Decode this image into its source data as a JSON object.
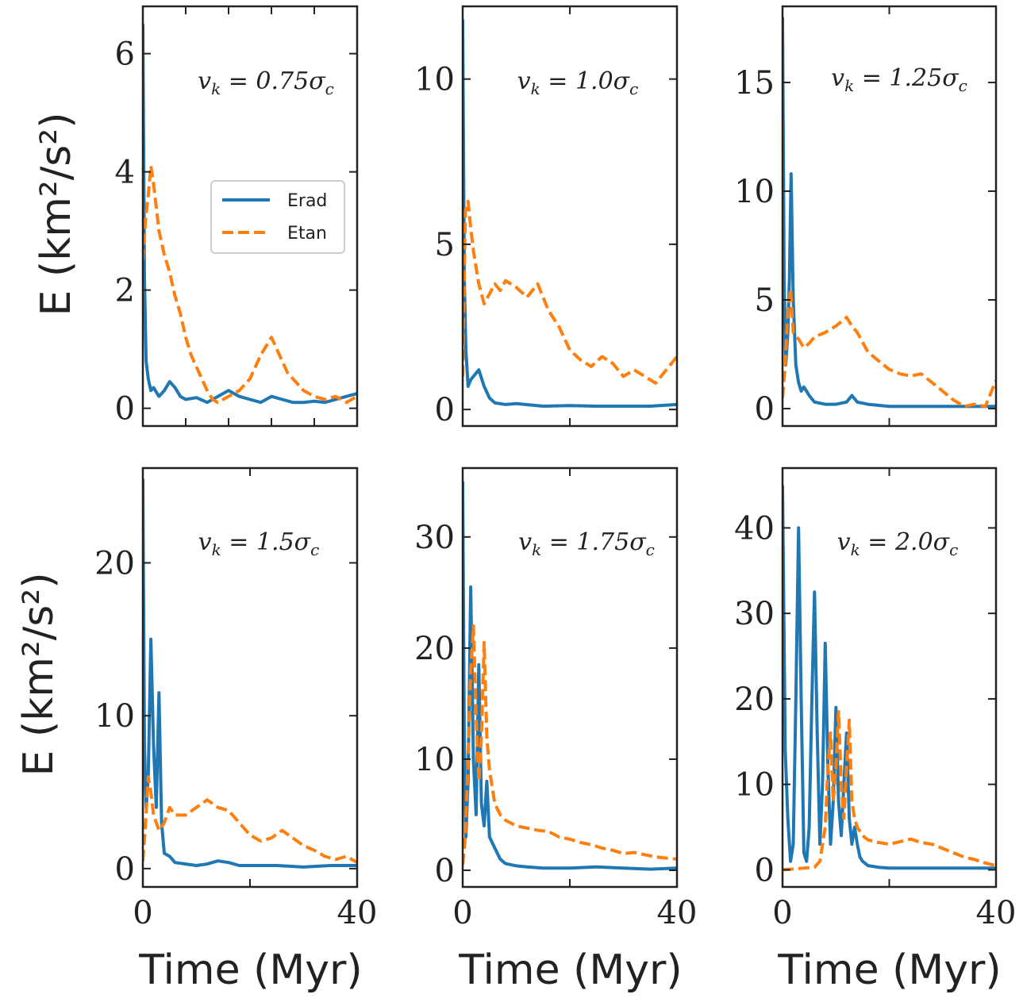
{
  "figure": {
    "ylabel": "E (km²/s²)",
    "xlabel": "Time (Myr)",
    "legend": {
      "placement": "center-right (first panel)",
      "entries": [
        "Erad",
        "Etan"
      ]
    },
    "colors": {
      "Erad": "#1f77b4",
      "Etan": "#ff7f0e",
      "axes": "#222222"
    }
  },
  "chart_data": [
    {
      "type": "line",
      "title": "v_k = 0.75σ_c",
      "xlim": [
        0,
        40
      ],
      "ylim": [
        -0.3,
        6.8
      ],
      "xticks": [
        0,
        8,
        16,
        24,
        32,
        40
      ],
      "yticks": [
        0,
        2,
        4,
        6
      ],
      "show_xticklabels": false,
      "series": [
        {
          "name": "Erad",
          "style": "solid",
          "x": [
            0,
            0.3,
            0.6,
            1,
            1.5,
            2,
            3,
            4,
            5,
            6,
            7,
            8,
            10,
            12,
            14,
            16,
            18,
            20,
            22,
            24,
            26,
            28,
            30,
            32,
            34,
            36,
            38,
            40
          ],
          "y": [
            6.5,
            2.2,
            0.8,
            0.5,
            0.3,
            0.35,
            0.2,
            0.3,
            0.45,
            0.35,
            0.2,
            0.15,
            0.18,
            0.1,
            0.2,
            0.3,
            0.2,
            0.15,
            0.1,
            0.2,
            0.15,
            0.1,
            0.1,
            0.12,
            0.1,
            0.15,
            0.2,
            0.25
          ]
        },
        {
          "name": "Etan",
          "style": "dashed",
          "x": [
            0,
            0.5,
            1,
            1.5,
            2,
            2.5,
            3,
            4,
            5,
            6,
            7,
            8,
            9,
            10,
            11,
            12,
            13,
            14,
            16,
            18,
            19,
            20,
            22,
            24,
            25,
            26,
            27,
            28,
            30,
            32,
            34,
            36,
            38,
            40
          ],
          "y": [
            2.5,
            3.2,
            3.6,
            4.1,
            3.8,
            3.4,
            3.0,
            2.6,
            2.3,
            1.9,
            1.6,
            1.2,
            0.9,
            0.7,
            0.5,
            0.3,
            0.15,
            0.1,
            0.2,
            0.3,
            0.4,
            0.5,
            0.9,
            1.2,
            1.0,
            0.8,
            0.6,
            0.5,
            0.3,
            0.2,
            0.15,
            0.2,
            0.1,
            0.2
          ]
        }
      ]
    },
    {
      "type": "line",
      "title": "v_k = 1.0σ_c",
      "xlim": [
        0,
        40
      ],
      "ylim": [
        -0.5,
        12.2
      ],
      "xticks": [
        0,
        20,
        40
      ],
      "yticks": [
        0,
        5,
        10
      ],
      "show_xticklabels": false,
      "series": [
        {
          "name": "Erad",
          "style": "solid",
          "x": [
            0,
            0.3,
            0.6,
            1,
            1.5,
            2,
            3,
            4,
            5,
            6,
            8,
            10,
            15,
            20,
            25,
            30,
            35,
            40
          ],
          "y": [
            11.8,
            4.0,
            1.8,
            0.7,
            0.9,
            1.0,
            1.2,
            0.7,
            0.35,
            0.2,
            0.15,
            0.18,
            0.1,
            0.12,
            0.1,
            0.1,
            0.1,
            0.15
          ]
        },
        {
          "name": "Etan",
          "style": "dashed",
          "x": [
            0,
            0.5,
            1,
            1.5,
            2,
            3,
            4,
            5,
            6,
            7,
            8,
            10,
            12,
            14,
            16,
            18,
            20,
            22,
            24,
            26,
            28,
            30,
            32,
            34,
            36,
            38,
            40
          ],
          "y": [
            1.0,
            6.0,
            6.3,
            5.5,
            4.8,
            3.8,
            3.2,
            3.5,
            3.8,
            3.6,
            3.9,
            3.7,
            3.4,
            3.8,
            3.0,
            2.5,
            1.8,
            1.5,
            1.3,
            1.6,
            1.4,
            1.0,
            1.2,
            1.0,
            0.8,
            1.2,
            1.6
          ]
        }
      ]
    },
    {
      "type": "line",
      "title": "v_k = 1.25σ_c",
      "xlim": [
        0,
        40
      ],
      "ylim": [
        -0.8,
        18.5
      ],
      "xticks": [
        0,
        20,
        40
      ],
      "yticks": [
        0,
        5,
        10,
        15
      ],
      "show_xticklabels": false,
      "series": [
        {
          "name": "Erad",
          "style": "solid",
          "x": [
            0,
            0.3,
            0.6,
            1,
            1.3,
            1.6,
            2,
            2.5,
            3,
            3.5,
            4,
            5,
            6,
            8,
            10,
            12,
            13,
            14,
            16,
            20,
            25,
            30,
            35,
            40
          ],
          "y": [
            18,
            6.0,
            2.0,
            3.5,
            6.0,
            10.8,
            5.0,
            2.0,
            1.2,
            0.8,
            1.0,
            0.6,
            0.3,
            0.2,
            0.2,
            0.3,
            0.6,
            0.3,
            0.2,
            0.1,
            0.1,
            0.1,
            0.1,
            0.1
          ]
        },
        {
          "name": "Etan",
          "style": "dashed",
          "x": [
            0,
            0.5,
            1,
            1.5,
            2,
            3,
            4,
            5,
            6,
            8,
            10,
            12,
            13,
            14,
            16,
            18,
            20,
            22,
            24,
            26,
            28,
            30,
            32,
            34,
            36,
            38,
            40
          ],
          "y": [
            0.5,
            2.0,
            4.5,
            5.5,
            3.5,
            3.2,
            2.8,
            3.0,
            3.3,
            3.5,
            3.8,
            4.2,
            3.8,
            3.5,
            2.6,
            2.2,
            1.8,
            1.6,
            1.5,
            1.6,
            1.2,
            0.8,
            0.4,
            0.1,
            0.2,
            0.1,
            1.3
          ]
        }
      ]
    },
    {
      "type": "line",
      "title": "v_k = 1.5σ_c",
      "xlim": [
        0,
        40
      ],
      "ylim": [
        -1.2,
        26.2
      ],
      "xticks": [
        0,
        20,
        40
      ],
      "yticks": [
        0,
        10,
        20
      ],
      "show_xticklabels": true,
      "series": [
        {
          "name": "Erad",
          "style": "solid",
          "x": [
            0,
            0.3,
            0.6,
            1,
            1.5,
            2,
            2.5,
            3,
            3.5,
            4,
            5,
            6,
            8,
            10,
            12,
            14,
            16,
            18,
            20,
            25,
            30,
            35,
            40
          ],
          "y": [
            25.5,
            8.0,
            4.0,
            6.0,
            15.0,
            8.0,
            4.0,
            11.5,
            3.0,
            1.0,
            0.8,
            0.4,
            0.3,
            0.2,
            0.3,
            0.5,
            0.4,
            0.2,
            0.2,
            0.2,
            0.1,
            0.2,
            0.2
          ]
        },
        {
          "name": "Etan",
          "style": "dashed",
          "x": [
            0,
            0.5,
            1,
            1.5,
            2,
            3,
            4,
            5,
            6,
            8,
            10,
            12,
            14,
            16,
            18,
            20,
            22,
            24,
            26,
            28,
            30,
            32,
            34,
            36,
            38,
            40
          ],
          "y": [
            0.5,
            3.0,
            6.0,
            5.0,
            3.5,
            2.5,
            3.0,
            4.0,
            3.5,
            3.5,
            4.0,
            4.5,
            4.0,
            3.8,
            3.0,
            2.2,
            1.8,
            2.0,
            2.5,
            2.0,
            1.5,
            1.2,
            0.8,
            0.6,
            0.8,
            0.4
          ]
        }
      ]
    },
    {
      "type": "line",
      "title": "v_k = 1.75σ_c",
      "xlim": [
        0,
        40
      ],
      "ylim": [
        -1.5,
        36.2
      ],
      "xticks": [
        0,
        20,
        40
      ],
      "yticks": [
        0,
        10,
        20,
        30
      ],
      "show_xticklabels": true,
      "series": [
        {
          "name": "Erad",
          "style": "solid",
          "x": [
            0,
            0.3,
            0.6,
            1,
            1.5,
            2,
            2.5,
            3,
            3.5,
            4,
            4.5,
            5,
            6,
            7,
            8,
            10,
            12,
            15,
            20,
            25,
            30,
            35,
            40
          ],
          "y": [
            35,
            12.0,
            3.0,
            8.0,
            25.5,
            10.0,
            5.0,
            18.5,
            6.0,
            4.0,
            8.0,
            3.0,
            2.0,
            1.0,
            0.6,
            0.4,
            0.3,
            0.2,
            0.2,
            0.3,
            0.2,
            0.1,
            0.2
          ]
        },
        {
          "name": "Etan",
          "style": "dashed",
          "x": [
            0,
            0.5,
            1,
            1.5,
            2,
            2.5,
            3,
            3.5,
            4,
            4.5,
            5,
            6,
            7,
            8,
            10,
            12,
            14,
            16,
            18,
            20,
            22,
            24,
            26,
            28,
            30,
            32,
            34,
            36,
            38,
            40
          ],
          "y": [
            0.5,
            3.0,
            10.0,
            18.0,
            22.0,
            14.0,
            8.0,
            12.0,
            20.5,
            12.0,
            9.0,
            6.0,
            5.0,
            4.5,
            4.0,
            3.8,
            3.6,
            3.5,
            3.0,
            2.8,
            2.5,
            2.3,
            2.0,
            1.8,
            1.5,
            1.6,
            1.4,
            1.2,
            1.1,
            1.0
          ]
        }
      ]
    },
    {
      "type": "line",
      "title": "v_k = 2.0σ_c",
      "xlim": [
        0,
        40
      ],
      "ylim": [
        -2.0,
        47.0
      ],
      "xticks": [
        0,
        20,
        40
      ],
      "yticks": [
        0,
        10,
        20,
        30,
        40
      ],
      "show_xticklabels": true,
      "series": [
        {
          "name": "Erad",
          "style": "solid",
          "x": [
            0,
            0.5,
            1,
            1.5,
            2,
            2.5,
            3,
            3.5,
            4,
            4.5,
            5,
            5.5,
            6,
            6.5,
            7,
            7.5,
            8,
            8.5,
            9,
            9.5,
            10,
            10.5,
            11,
            11.5,
            12,
            12.5,
            13,
            13.5,
            14,
            14.5,
            15,
            16,
            18,
            20,
            25,
            30,
            35,
            40
          ],
          "y": [
            45,
            14.0,
            6.0,
            1.0,
            3.0,
            20.0,
            40.0,
            20.0,
            2.0,
            1.0,
            5.0,
            20.0,
            32.5,
            16.0,
            3.0,
            10.0,
            26.5,
            12.0,
            3.0,
            8.0,
            19.0,
            8.0,
            4.0,
            10.0,
            16.0,
            6.0,
            3.0,
            5.0,
            3.0,
            1.5,
            1.0,
            0.5,
            0.3,
            0.2,
            0.2,
            0.2,
            0.2,
            0.2
          ]
        },
        {
          "name": "Etan",
          "style": "dashed",
          "x": [
            0,
            2,
            4,
            6,
            7,
            8,
            8.5,
            9,
            9.5,
            10,
            10.5,
            11,
            11.5,
            12,
            12.5,
            13,
            13.5,
            14,
            15,
            16,
            18,
            20,
            22,
            24,
            26,
            28,
            30,
            32,
            34,
            36,
            38,
            40
          ],
          "y": [
            0,
            0.1,
            0.2,
            0.3,
            1.0,
            5.0,
            12.0,
            16.0,
            8.0,
            12.0,
            18.5,
            10.0,
            6.0,
            12.0,
            17.5,
            8.0,
            6.0,
            5.0,
            4.0,
            3.5,
            3.2,
            3.0,
            3.3,
            3.6,
            3.2,
            3.0,
            2.5,
            2.0,
            1.5,
            1.2,
            0.8,
            0.5
          ]
        }
      ]
    }
  ]
}
